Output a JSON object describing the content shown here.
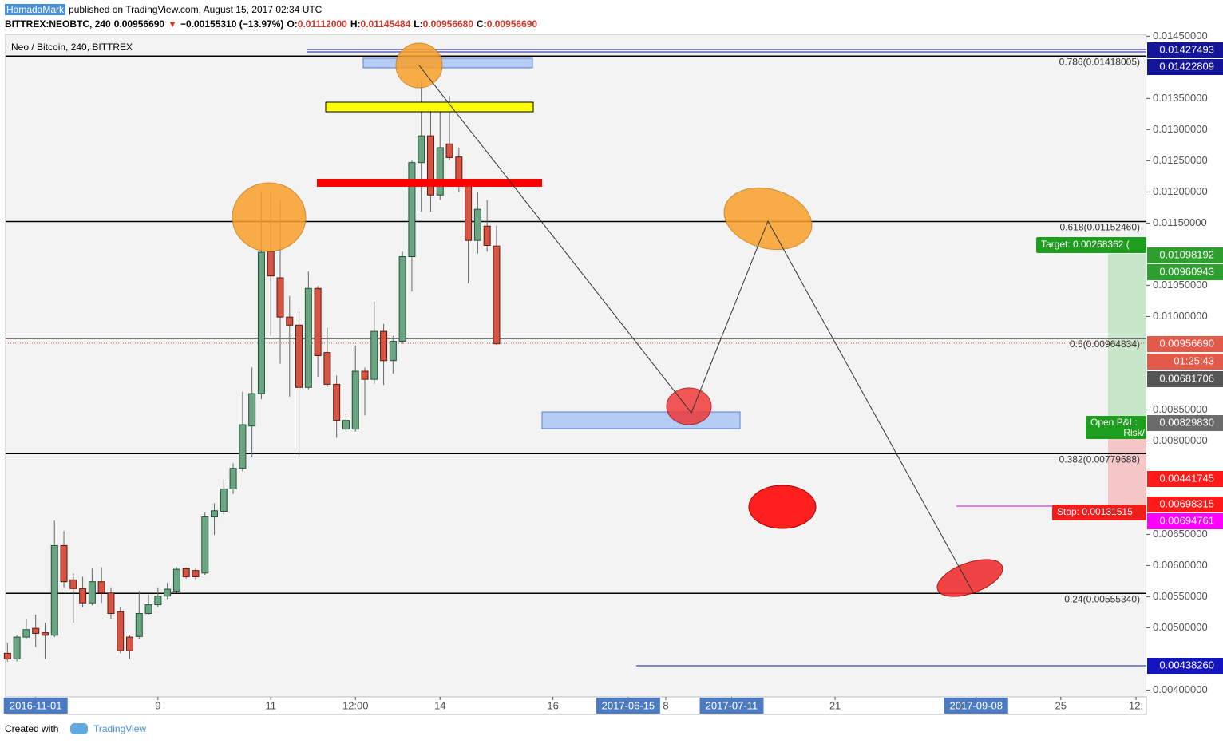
{
  "header": {
    "author": "HamadaMark",
    "published": "published on TradingView.com, August 15, 2017 02:34 UTC",
    "symbol_line": [
      {
        "text": "BITTREX:NEOBTC, 240",
        "color": "#000000"
      },
      {
        "text": "0.00956690",
        "color": "#000000"
      },
      {
        "text": "▼",
        "color": "#d0352a"
      },
      {
        "text": "−0.00155310 (−13.97%)",
        "color": "#000000"
      },
      {
        "text": "O:",
        "color": "#000000"
      },
      {
        "text": "0.01112000",
        "color": "#d0352a"
      },
      {
        "text": "H:",
        "color": "#000000"
      },
      {
        "text": "0.01145484",
        "color": "#d0352a"
      },
      {
        "text": "L:",
        "color": "#000000"
      },
      {
        "text": "0.00956680",
        "color": "#d0352a"
      },
      {
        "text": "C:",
        "color": "#000000"
      },
      {
        "text": "0.00956690",
        "color": "#d0352a"
      }
    ]
  },
  "chart_data": {
    "type": "candlestick",
    "title": "Neo / Bitcoin, 240, BITTREX",
    "up_color": "#6ba583",
    "down_color": "#d75442",
    "open": [
      0.00459,
      0.0045,
      0.00485,
      0.00499,
      0.00492,
      0.00488,
      0.00632,
      0.00577,
      0.00563,
      0.0054,
      0.00574,
      0.00556,
      0.00526,
      0.00485,
      0.00486,
      0.00523,
      0.00537,
      0.00551,
      0.00559,
      0.00595,
      0.00592,
      0.00588,
      0.00678,
      0.00687,
      0.00723,
      0.00756,
      0.00824,
      0.00876,
      0.01104,
      0.01062,
      0.00999,
      0.00986,
      0.00886,
      0.01045,
      0.00942,
      0.00891,
      0.00819,
      0.00819,
      0.00912,
      0.00899,
      0.00976,
      0.00929,
      0.0096,
      0.01096,
      0.01247,
      0.0129,
      0.01195,
      0.01277,
      0.01256,
      0.0121,
      0.01122,
      0.01145,
      0.01113
    ],
    "high": [
      0.00476,
      0.00488,
      0.00514,
      0.00521,
      0.00508,
      0.00672,
      0.00655,
      0.00587,
      0.00582,
      0.00595,
      0.00597,
      0.00565,
      0.00533,
      0.00488,
      0.00559,
      0.00553,
      0.00565,
      0.00572,
      0.00597,
      0.00597,
      0.00595,
      0.00685,
      0.007,
      0.00738,
      0.00764,
      0.00879,
      0.00918,
      0.012,
      0.012,
      0.01187,
      0.01033,
      0.01008,
      0.01072,
      0.01049,
      0.00982,
      0.00905,
      0.00844,
      0.00953,
      0.00918,
      0.01024,
      0.00988,
      0.00969,
      0.01104,
      0.01251,
      0.01379,
      0.01341,
      0.01341,
      0.01354,
      0.01271,
      0.01219,
      0.012,
      0.01187,
      0.01146
    ],
    "low": [
      0.00446,
      0.00446,
      0.00482,
      0.00469,
      0.0045,
      0.00485,
      0.00565,
      0.00508,
      0.00533,
      0.00536,
      0.0054,
      0.00514,
      0.00459,
      0.0045,
      0.00482,
      0.00521,
      0.00533,
      0.00546,
      0.00556,
      0.00579,
      0.00577,
      0.00585,
      0.00649,
      0.00681,
      0.00715,
      0.00751,
      0.00774,
      0.00867,
      0.00969,
      0.00924,
      0.00871,
      0.00774,
      0.00883,
      0.00903,
      0.00887,
      0.00805,
      0.00815,
      0.00815,
      0.00841,
      0.00892,
      0.0089,
      0.00908,
      0.00956,
      0.0104,
      0.01168,
      0.01168,
      0.01187,
      0.01251,
      0.012,
      0.01053,
      0.01101,
      0.01104,
      0.00954
    ],
    "close": [
      0.0045,
      0.00485,
      0.00497,
      0.00491,
      0.00488,
      0.00632,
      0.00574,
      0.00563,
      0.0054,
      0.00574,
      0.00556,
      0.00523,
      0.00463,
      0.00463,
      0.00523,
      0.00537,
      0.00551,
      0.00562,
      0.00594,
      0.00582,
      0.00582,
      0.00678,
      0.00688,
      0.00723,
      0.00756,
      0.00826,
      0.00876,
      0.01103,
      0.01065,
      0.00999,
      0.00986,
      0.00886,
      0.01045,
      0.00937,
      0.00891,
      0.00833,
      0.00833,
      0.00912,
      0.00899,
      0.00976,
      0.00929,
      0.0096,
      0.01096,
      0.01247,
      0.0129,
      0.01195,
      0.01271,
      0.01255,
      0.0121,
      0.01122,
      0.01172,
      0.01114,
      0.00956
    ],
    "ylim": [
      0.00389,
      0.01453
    ],
    "yticks": [
      {
        "value": 0.0145,
        "label": "0.01450000"
      },
      {
        "value": 0.0135,
        "label": "0.01350000"
      },
      {
        "value": 0.013,
        "label": "0.01300000"
      },
      {
        "value": 0.0125,
        "label": "0.01250000"
      },
      {
        "value": 0.012,
        "label": "0.01200000"
      },
      {
        "value": 0.0115,
        "label": "0.01150000"
      },
      {
        "value": 0.0105,
        "label": "0.01050000"
      },
      {
        "value": 0.01,
        "label": "0.01000000"
      },
      {
        "value": 0.0085,
        "label": "0.00850000"
      },
      {
        "value": 0.008,
        "label": "0.00800000"
      },
      {
        "value": 0.0065,
        "label": "0.00650000"
      },
      {
        "value": 0.006,
        "label": "0.00600000"
      },
      {
        "value": 0.0055,
        "label": "0.00550000"
      },
      {
        "value": 0.005,
        "label": "0.00500000"
      },
      {
        "value": 0.004,
        "label": "0.00400000"
      }
    ],
    "xlim": [
      -0.2,
      121.1
    ],
    "xticks": [
      {
        "value": 3,
        "label": "2016-11-01",
        "highlighted": true
      },
      {
        "value": 16,
        "label": "9"
      },
      {
        "value": 28,
        "label": "11"
      },
      {
        "value": 37,
        "label": "12:00"
      },
      {
        "value": 46,
        "label": "14"
      },
      {
        "value": 58,
        "label": "16"
      },
      {
        "value": 66,
        "label": "2017-06-15",
        "highlighted": true
      },
      {
        "value": 70,
        "label": "8"
      },
      {
        "value": 77,
        "label": "2017-07-11",
        "highlighted": true
      },
      {
        "value": 88,
        "label": "21"
      },
      {
        "value": 103,
        "label": "2017-09-08",
        "highlighted": true
      },
      {
        "value": 112,
        "label": "25"
      },
      {
        "value": 120,
        "label": "12:"
      }
    ],
    "fib_levels": [
      {
        "value": 0.01418005,
        "label": "0.786(0.01418005)"
      },
      {
        "value": 0.0115246,
        "label": "0.618(0.01152460)"
      },
      {
        "value": 0.00964834,
        "label": "0.5(0.00964834)"
      },
      {
        "value": 0.00779688,
        "label": "0.382(0.00779688)"
      },
      {
        "value": 0.0055534,
        "label": "0.24(0.00555340)"
      }
    ],
    "price_labels": [
      {
        "label": "0.01427493",
        "color": "#15159c"
      },
      {
        "label": "0.01422809",
        "color": "#15159c"
      },
      {
        "label": "0.01098192",
        "color": "#2e9e2e"
      },
      {
        "label": "0.00960943",
        "color": "#2e9e2e"
      },
      {
        "label": "0.00956690",
        "color": "#e35a4b"
      },
      {
        "label": "01:25:43",
        "color": "#e35a4b"
      },
      {
        "label": "0.00681706",
        "color": "#555555"
      },
      {
        "label": "0.00829830",
        "color": "#6b6b6b"
      },
      {
        "label": "0.00441745",
        "color": "#ff1a1a"
      },
      {
        "label": "0.00698315",
        "color": "#ff1a1a"
      },
      {
        "label": "0.00694761",
        "color": "#ff00ff"
      },
      {
        "label": "0.00438260",
        "color": "#1515c0"
      }
    ],
    "position_labels": {
      "target": "Target: 0.00268362 (",
      "open_pl": "Open P&L:",
      "risk": "Risk/",
      "stop": "Stop: 0.00131515"
    }
  },
  "footer": {
    "created": "Created with",
    "brand": "TradingView"
  }
}
